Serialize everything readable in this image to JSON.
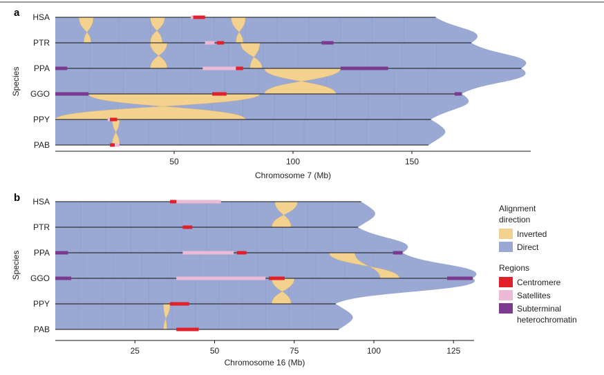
{
  "colors": {
    "direct": "#9aa8d4",
    "direct_dark": "#6f80bd",
    "inverted": "#f2d28e",
    "green": "#3a9a4a",
    "centromere": "#e2202a",
    "satellites": "#ecbad6",
    "subterminal": "#7b3a8f",
    "line": "#111111"
  },
  "legend": {
    "alignment_title_1": "Alignment",
    "alignment_title_2": "direction",
    "inverted": "Inverted",
    "direct": "Direct",
    "regions_title": "Regions",
    "centromere": "Centromere",
    "satellites": "Satellites",
    "subterminal_1": "Subterminal",
    "subterminal_2": "heterochromatin"
  },
  "chart_data": [
    {
      "panel": "a",
      "type": "synteny",
      "ylabel": "Species",
      "xlabel": "Chromosome 7 (Mb)",
      "xticks": [
        50,
        100,
        150
      ],
      "xlim": [
        0,
        196
      ],
      "species": [
        {
          "code": "HSA",
          "length": 160,
          "centromere": [
            [
              58,
              63
            ]
          ],
          "satellites": [
            [
              57,
              59
            ]
          ],
          "subterminal": []
        },
        {
          "code": "PTR",
          "length": 175,
          "centromere": [
            [
              68,
              71
            ]
          ],
          "satellites": [
            [
              63,
              67
            ]
          ],
          "subterminal": [
            [
              112,
              117
            ]
          ]
        },
        {
          "code": "PPA",
          "length": 196,
          "centromere": [
            [
              76,
              79
            ]
          ],
          "satellites": [
            [
              62,
              76
            ]
          ],
          "subterminal": [
            [
              0,
              5
            ],
            [
              120,
              140
            ]
          ]
        },
        {
          "code": "GGO",
          "length": 171,
          "centromere": [
            [
              66,
              72
            ]
          ],
          "satellites": [],
          "subterminal": [
            [
              0,
              14
            ],
            [
              168,
              171
            ]
          ]
        },
        {
          "code": "PPY",
          "length": 158,
          "centromere": [
            [
              23,
              26
            ]
          ],
          "satellites": [
            [
              22,
              23
            ]
          ],
          "subterminal": []
        },
        {
          "code": "PAB",
          "length": 157,
          "centromere": [
            [
              23,
              25
            ]
          ],
          "satellites": [
            [
              25,
              27
            ]
          ],
          "subterminal": []
        }
      ],
      "inversions": [
        {
          "pair": [
            0,
            1
          ],
          "top": [
            10,
            16
          ],
          "bottom": [
            12,
            15
          ]
        },
        {
          "pair": [
            0,
            1
          ],
          "top": [
            40,
            46
          ],
          "bottom": [
            40,
            45
          ]
        },
        {
          "pair": [
            0,
            1
          ],
          "top": [
            74,
            80
          ],
          "bottom": [
            76,
            79
          ]
        },
        {
          "pair": [
            1,
            2
          ],
          "top": [
            40,
            47
          ],
          "bottom": [
            40,
            47
          ]
        },
        {
          "pair": [
            1,
            2
          ],
          "top": [
            78,
            86
          ],
          "bottom": [
            82,
            87
          ]
        },
        {
          "pair": [
            2,
            3
          ],
          "top": [
            88,
            120
          ],
          "bottom": [
            88,
            118
          ]
        },
        {
          "pair": [
            3,
            4
          ],
          "top": [
            14,
            86
          ],
          "bottom": [
            0,
            80
          ]
        },
        {
          "pair": [
            4,
            5
          ],
          "top": [
            24,
            27
          ],
          "bottom": [
            24,
            27
          ]
        }
      ]
    },
    {
      "panel": "b",
      "type": "synteny",
      "ylabel": "Species",
      "xlabel": "Chromosome 16 (Mb)",
      "xticks": [
        25,
        50,
        75,
        100,
        125
      ],
      "xlim": [
        0,
        131
      ],
      "species": [
        {
          "code": "HSA",
          "length": 96,
          "centromere": [
            [
              36,
              38
            ]
          ],
          "satellites": [
            [
              38,
              52
            ]
          ],
          "subterminal": []
        },
        {
          "code": "PTR",
          "length": 95,
          "centromere": [
            [
              40,
              43
            ]
          ],
          "satellites": [],
          "subterminal": []
        },
        {
          "code": "PPA",
          "length": 109,
          "centromere": [
            [
              57,
              60
            ]
          ],
          "satellites": [
            [
              40,
              56
            ]
          ],
          "subterminal": [
            [
              0,
              4
            ],
            [
              106,
              109
            ]
          ]
        },
        {
          "code": "GGO",
          "length": 131,
          "centromere": [
            [
              67,
              72
            ]
          ],
          "satellites": [
            [
              38,
              66
            ]
          ],
          "subterminal": [
            [
              0,
              5
            ],
            [
              123,
              131
            ]
          ]
        },
        {
          "code": "PPY",
          "length": 88,
          "centromere": [
            [
              36,
              42
            ]
          ],
          "satellites": [],
          "subterminal": []
        },
        {
          "code": "PAB",
          "length": 89,
          "centromere": [
            [
              38,
              45
            ]
          ],
          "satellites": [],
          "subterminal": []
        }
      ],
      "inversions": [
        {
          "pair": [
            0,
            1
          ],
          "top": [
            69,
            76
          ],
          "bottom": [
            68,
            74
          ]
        },
        {
          "pair": [
            2,
            3
          ],
          "top": [
            86,
            94
          ],
          "bottom": [
            102,
            108
          ]
        },
        {
          "pair": [
            3,
            4
          ],
          "top": [
            68,
            75
          ],
          "bottom": [
            68,
            74
          ]
        },
        {
          "pair": [
            4,
            5
          ],
          "top": [
            34,
            36
          ],
          "bottom": [
            34,
            35
          ]
        }
      ]
    }
  ]
}
